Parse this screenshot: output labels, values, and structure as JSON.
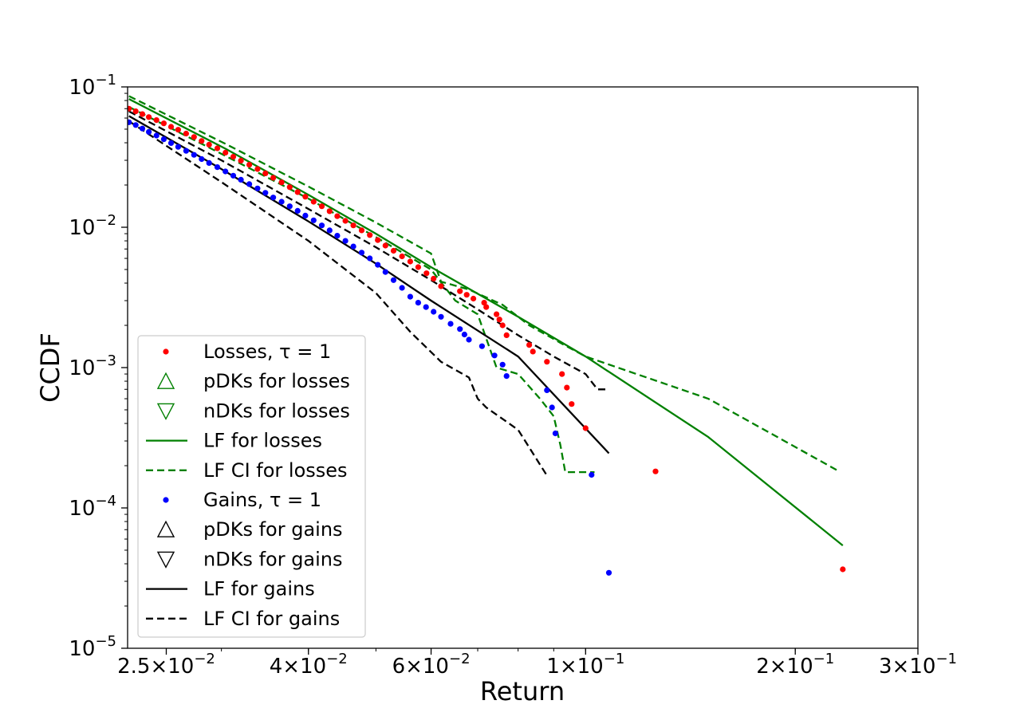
{
  "chart_data": {
    "type": "scatter",
    "title": "",
    "xlabel": "Return",
    "ylabel": "CCDF",
    "xscale": "log",
    "yscale": "log",
    "xlim": [
      0.022,
      0.3
    ],
    "ylim": [
      1e-05,
      0.1
    ],
    "x_ticks": [
      {
        "value": 0.025,
        "base": "2.5",
        "exp": "−2"
      },
      {
        "value": 0.04,
        "base": "4",
        "exp": "−2"
      },
      {
        "value": 0.06,
        "base": "6",
        "exp": "−2"
      },
      {
        "value": 0.1,
        "base": "1",
        "exp": "−1"
      },
      {
        "value": 0.2,
        "base": "2",
        "exp": "−1"
      },
      {
        "value": 0.3,
        "base": "3",
        "exp": "−1"
      }
    ],
    "y_ticks": [
      {
        "value": 0.1,
        "exp": "−1"
      },
      {
        "value": 0.01,
        "exp": "−2"
      },
      {
        "value": 0.001,
        "exp": "−3"
      },
      {
        "value": 0.0001,
        "exp": "−4"
      },
      {
        "value": 1e-05,
        "exp": "−5"
      }
    ],
    "tick_base": "10",
    "tick_times": "×",
    "legend_position": "lower-left",
    "legend": [
      {
        "label": "Losses, τ = 1",
        "kind": "dot",
        "color": "#ff0000"
      },
      {
        "label": "pDKs for losses",
        "kind": "triangle-up",
        "color": "#008000"
      },
      {
        "label": "nDKs for losses",
        "kind": "triangle-down",
        "color": "#008000"
      },
      {
        "label": "LF for losses",
        "kind": "solid",
        "color": "#008000"
      },
      {
        "label": "LF CI for losses",
        "kind": "dashed",
        "color": "#008000"
      },
      {
        "label": "Gains, τ = 1",
        "kind": "dot",
        "color": "#0000ff"
      },
      {
        "label": "pDKs for gains",
        "kind": "triangle-up",
        "color": "#000000"
      },
      {
        "label": "nDKs for gains",
        "kind": "triangle-down",
        "color": "#000000"
      },
      {
        "label": "LF for gains",
        "kind": "solid",
        "color": "#000000"
      },
      {
        "label": "LF CI for gains",
        "kind": "dashed",
        "color": "#000000"
      }
    ],
    "series": [
      {
        "name": "Losses, τ = 1",
        "type": "scatter",
        "color": "#ff0000",
        "points": [
          [
            0.0221,
            0.07
          ],
          [
            0.0226,
            0.067
          ],
          [
            0.0231,
            0.064
          ],
          [
            0.0236,
            0.061
          ],
          [
            0.0242,
            0.058
          ],
          [
            0.0248,
            0.055
          ],
          [
            0.0254,
            0.052
          ],
          [
            0.026,
            0.0495
          ],
          [
            0.0267,
            0.0465
          ],
          [
            0.0274,
            0.044
          ],
          [
            0.0281,
            0.0412
          ],
          [
            0.0288,
            0.0388
          ],
          [
            0.0296,
            0.0365
          ],
          [
            0.0304,
            0.034
          ],
          [
            0.0312,
            0.0318
          ],
          [
            0.032,
            0.0298
          ],
          [
            0.0329,
            0.0279
          ],
          [
            0.0338,
            0.026
          ],
          [
            0.0347,
            0.0242
          ],
          [
            0.0356,
            0.0225
          ],
          [
            0.0366,
            0.0209
          ],
          [
            0.0376,
            0.0193
          ],
          [
            0.0386,
            0.0178
          ],
          [
            0.0396,
            0.0165
          ],
          [
            0.0407,
            0.0152
          ],
          [
            0.0418,
            0.0141
          ],
          [
            0.0429,
            0.013
          ],
          [
            0.044,
            0.012
          ],
          [
            0.0452,
            0.0111
          ],
          [
            0.0464,
            0.0103
          ],
          [
            0.0477,
            0.0095
          ],
          [
            0.049,
            0.0088
          ],
          [
            0.0503,
            0.0081
          ],
          [
            0.0516,
            0.0074
          ],
          [
            0.053,
            0.0068
          ],
          [
            0.0545,
            0.0062
          ],
          [
            0.056,
            0.0057
          ],
          [
            0.0575,
            0.0052
          ],
          [
            0.0591,
            0.0047
          ],
          [
            0.0605,
            0.0043
          ],
          [
            0.062,
            0.0038
          ],
          [
            0.066,
            0.0035
          ],
          [
            0.0675,
            0.0033
          ],
          [
            0.069,
            0.0031
          ],
          [
            0.0715,
            0.0029
          ],
          [
            0.072,
            0.0027
          ],
          [
            0.0745,
            0.0024
          ],
          [
            0.0752,
            0.0022
          ],
          [
            0.076,
            0.002
          ],
          [
            0.077,
            0.0017
          ],
          [
            0.083,
            0.00145
          ],
          [
            0.084,
            0.0013
          ],
          [
            0.088,
            0.0011
          ],
          [
            0.0925,
            0.0009
          ],
          [
            0.094,
            0.00072
          ],
          [
            0.0955,
            0.00055
          ],
          [
            0.1,
            0.00037
          ],
          [
            0.126,
            0.000182
          ],
          [
            0.234,
            3.65e-05
          ]
        ]
      },
      {
        "name": "Gains, τ = 1",
        "type": "scatter",
        "color": "#0000ff",
        "points": [
          [
            0.0221,
            0.056
          ],
          [
            0.0226,
            0.0535
          ],
          [
            0.0231,
            0.0505
          ],
          [
            0.0236,
            0.0478
          ],
          [
            0.0242,
            0.045
          ],
          [
            0.0248,
            0.0424
          ],
          [
            0.0254,
            0.0398
          ],
          [
            0.026,
            0.0374
          ],
          [
            0.0267,
            0.035
          ],
          [
            0.0274,
            0.0328
          ],
          [
            0.0281,
            0.0306
          ],
          [
            0.0288,
            0.0287
          ],
          [
            0.0296,
            0.0268
          ],
          [
            0.0304,
            0.025
          ],
          [
            0.0312,
            0.0233
          ],
          [
            0.032,
            0.0218
          ],
          [
            0.0329,
            0.0203
          ],
          [
            0.0338,
            0.0189
          ],
          [
            0.0347,
            0.0176
          ],
          [
            0.0356,
            0.0163
          ],
          [
            0.0366,
            0.0152
          ],
          [
            0.0376,
            0.0141
          ],
          [
            0.0386,
            0.0131
          ],
          [
            0.0396,
            0.0121
          ],
          [
            0.0407,
            0.0112
          ],
          [
            0.0418,
            0.0103
          ],
          [
            0.0429,
            0.0095
          ],
          [
            0.044,
            0.0087
          ],
          [
            0.0452,
            0.008
          ],
          [
            0.0464,
            0.0073
          ],
          [
            0.0477,
            0.0066
          ],
          [
            0.049,
            0.006
          ],
          [
            0.0503,
            0.0054
          ],
          [
            0.0516,
            0.0048
          ],
          [
            0.053,
            0.0042
          ],
          [
            0.0545,
            0.0037
          ],
          [
            0.056,
            0.0032
          ],
          [
            0.0575,
            0.0029
          ],
          [
            0.059,
            0.0027
          ],
          [
            0.0605,
            0.0025
          ],
          [
            0.062,
            0.0023
          ],
          [
            0.064,
            0.00205
          ],
          [
            0.066,
            0.00188
          ],
          [
            0.067,
            0.00172
          ],
          [
            0.068,
            0.00158
          ],
          [
            0.071,
            0.00142
          ],
          [
            0.074,
            0.00122
          ],
          [
            0.076,
            0.00105
          ],
          [
            0.077,
            0.00087
          ],
          [
            0.088,
            0.00069
          ],
          [
            0.0895,
            0.00052
          ],
          [
            0.0905,
            0.00034
          ],
          [
            0.102,
            0.000172
          ],
          [
            0.108,
            3.45e-05
          ]
        ]
      },
      {
        "name": "LF for losses",
        "type": "line",
        "style": "solid",
        "color": "#008000",
        "points": [
          [
            0.0221,
            0.082
          ],
          [
            0.0305,
            0.036
          ],
          [
            0.04,
            0.017
          ],
          [
            0.05,
            0.009
          ],
          [
            0.06,
            0.0052
          ],
          [
            0.08,
            0.0023
          ],
          [
            0.1,
            0.0012
          ],
          [
            0.15,
            0.00032
          ],
          [
            0.234,
            5.4e-05
          ]
        ]
      },
      {
        "name": "LF CI for losses (upper)",
        "type": "line",
        "style": "dashed",
        "color": "#008000",
        "points": [
          [
            0.0221,
            0.086
          ],
          [
            0.0305,
            0.039
          ],
          [
            0.04,
            0.0195
          ],
          [
            0.05,
            0.0108
          ],
          [
            0.06,
            0.0065
          ],
          [
            0.062,
            0.0041
          ],
          [
            0.068,
            0.0036
          ],
          [
            0.076,
            0.0028
          ],
          [
            0.083,
            0.002
          ],
          [
            0.09,
            0.0016
          ],
          [
            0.092,
            0.0015
          ],
          [
            0.1,
            0.0012
          ],
          [
            0.15,
            0.0006
          ],
          [
            0.23,
            0.000185
          ]
        ]
      },
      {
        "name": "LF CI for losses (lower)",
        "type": "line",
        "style": "dashed",
        "color": "#008000",
        "points": [
          [
            0.0221,
            0.072
          ],
          [
            0.0305,
            0.032
          ],
          [
            0.04,
            0.016
          ],
          [
            0.05,
            0.0085
          ],
          [
            0.06,
            0.005
          ],
          [
            0.065,
            0.003
          ],
          [
            0.07,
            0.0024
          ],
          [
            0.0745,
            0.001
          ],
          [
            0.08,
            0.0009
          ],
          [
            0.086,
            0.0006
          ],
          [
            0.09,
            0.00045
          ],
          [
            0.092,
            0.00028
          ],
          [
            0.0935,
            0.00018
          ],
          [
            0.103,
            0.00018
          ]
        ]
      },
      {
        "name": "LF for gains",
        "type": "line",
        "style": "solid",
        "color": "#000000",
        "points": [
          [
            0.0221,
            0.062
          ],
          [
            0.03,
            0.026
          ],
          [
            0.04,
            0.011
          ],
          [
            0.05,
            0.0055
          ],
          [
            0.06,
            0.003
          ],
          [
            0.08,
            0.0012
          ],
          [
            0.108,
            0.000245
          ]
        ]
      },
      {
        "name": "LF CI for gains (upper)",
        "type": "line",
        "style": "dashed",
        "color": "#000000",
        "points": [
          [
            0.0221,
            0.067
          ],
          [
            0.03,
            0.03
          ],
          [
            0.04,
            0.0135
          ],
          [
            0.05,
            0.0072
          ],
          [
            0.06,
            0.0042
          ],
          [
            0.07,
            0.0026
          ],
          [
            0.08,
            0.0017
          ],
          [
            0.09,
            0.0012
          ],
          [
            0.1,
            0.0009
          ],
          [
            0.104,
            0.0007
          ],
          [
            0.108,
            0.0007
          ]
        ]
      },
      {
        "name": "LF CI for gains (lower)",
        "type": "line",
        "style": "dashed",
        "color": "#000000",
        "points": [
          [
            0.0221,
            0.057
          ],
          [
            0.03,
            0.021
          ],
          [
            0.04,
            0.008
          ],
          [
            0.05,
            0.0034
          ],
          [
            0.056,
            0.0018
          ],
          [
            0.062,
            0.0011
          ],
          [
            0.068,
            0.00085
          ],
          [
            0.07,
            0.0006
          ],
          [
            0.072,
            0.00052
          ],
          [
            0.08,
            0.00036
          ],
          [
            0.088,
            0.00017
          ]
        ]
      }
    ]
  }
}
